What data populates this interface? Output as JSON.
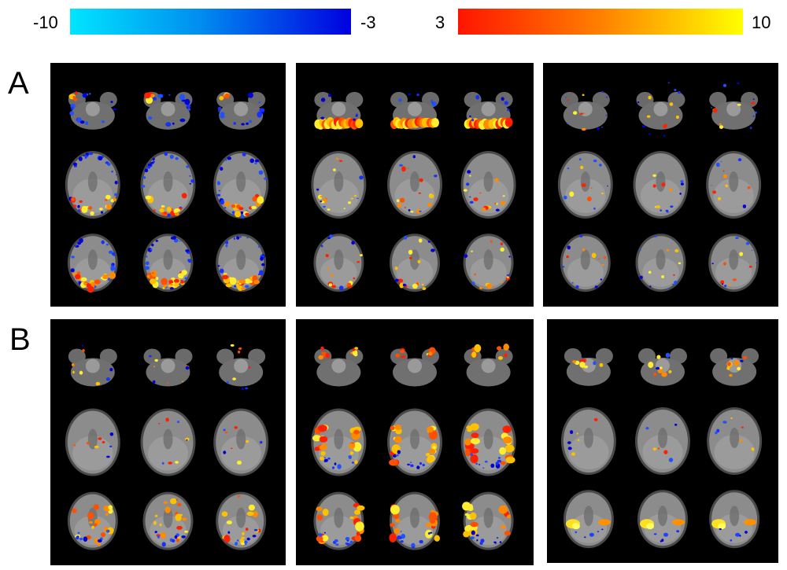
{
  "colorbars": {
    "negative": {
      "min_label": "-10",
      "max_label": "-3",
      "color_low": "#00e5ff",
      "color_high": "#0000e0"
    },
    "positive": {
      "min_label": "3",
      "max_label": "10",
      "color_low": "#ff1500",
      "color_high": "#ffff00"
    }
  },
  "rows": [
    {
      "label": "A",
      "panels": [
        {
          "activation": "edge-rim"
        },
        {
          "activation": "cerebellum-band"
        },
        {
          "activation": "sparse"
        }
      ]
    },
    {
      "label": "B",
      "panels": [
        {
          "activation": "scattered"
        },
        {
          "activation": "bilateral-clusters"
        },
        {
          "activation": "posterior-focal"
        }
      ]
    }
  ],
  "slice_grid": {
    "rows": 3,
    "cols": 3
  },
  "colors": {
    "panel_background": "#000000",
    "brain_fill": "#8c8c8c"
  }
}
